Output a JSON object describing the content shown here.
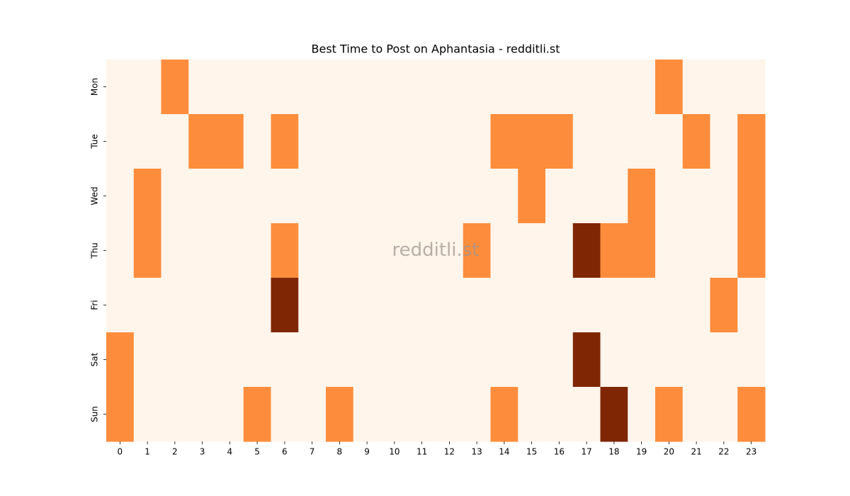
{
  "chart_data": {
    "type": "heatmap",
    "title": "Best Time to Post on Aphantasia - redditli.st",
    "annotation": "redditli.st",
    "x": [
      0,
      1,
      2,
      3,
      4,
      5,
      6,
      7,
      8,
      9,
      10,
      11,
      12,
      13,
      14,
      15,
      16,
      17,
      18,
      19,
      20,
      21,
      22,
      23
    ],
    "y": [
      "Mon",
      "Tue",
      "Wed",
      "Thu",
      "Fri",
      "Sat",
      "Sun"
    ],
    "values": [
      [
        0,
        0,
        1,
        0,
        0,
        0,
        0,
        0,
        0,
        0,
        0,
        0,
        0,
        0,
        0,
        0,
        0,
        0,
        0,
        0,
        1,
        0,
        0,
        0
      ],
      [
        0,
        0,
        0,
        1,
        1,
        0,
        1,
        0,
        0,
        0,
        0,
        0,
        0,
        0,
        1,
        1,
        1,
        0,
        0,
        0,
        0,
        1,
        0,
        1
      ],
      [
        0,
        1,
        0,
        0,
        0,
        0,
        0,
        0,
        0,
        0,
        0,
        0,
        0,
        0,
        0,
        1,
        0,
        0,
        0,
        1,
        0,
        0,
        0,
        1
      ],
      [
        0,
        1,
        0,
        0,
        0,
        0,
        1,
        0,
        0,
        0,
        0,
        0,
        0,
        1,
        0,
        0,
        0,
        2,
        1,
        1,
        0,
        0,
        0,
        1
      ],
      [
        0,
        0,
        0,
        0,
        0,
        0,
        2,
        0,
        0,
        0,
        0,
        0,
        0,
        0,
        0,
        0,
        0,
        0,
        0,
        0,
        0,
        0,
        1,
        0
      ],
      [
        1,
        0,
        0,
        0,
        0,
        0,
        0,
        0,
        0,
        0,
        0,
        0,
        0,
        0,
        0,
        0,
        0,
        2,
        0,
        0,
        0,
        0,
        0,
        0
      ],
      [
        1,
        0,
        0,
        0,
        0,
        1,
        0,
        0,
        1,
        0,
        0,
        0,
        0,
        0,
        1,
        0,
        0,
        0,
        2,
        0,
        1,
        0,
        0,
        1
      ]
    ],
    "colorscale": [
      "#fff5eb",
      "#fd8d3c",
      "#7f2704"
    ],
    "zlim": [
      0,
      2
    ]
  }
}
